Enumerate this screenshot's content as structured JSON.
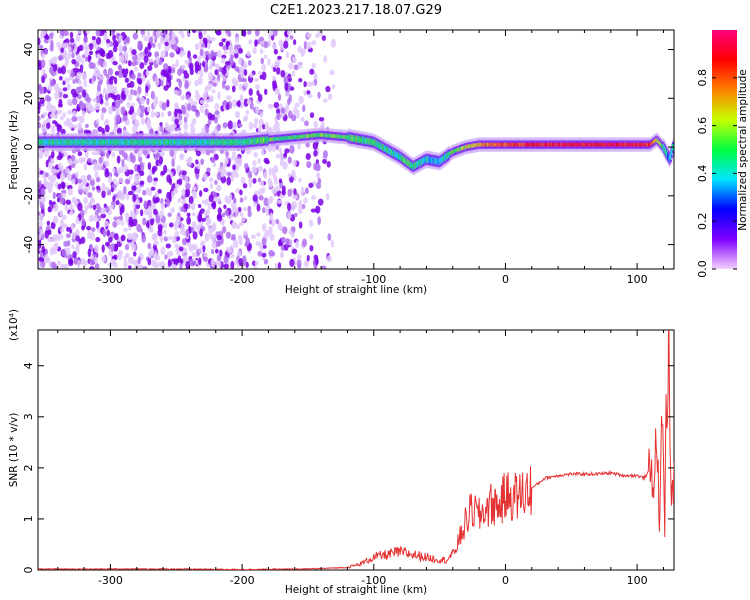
{
  "title": "C2E1.2023.217.18.07.G29",
  "colors": {
    "snr_line": "#e53333",
    "spectrum_noise": "#7a00e6",
    "colorbar_stops": [
      "#f5d0ff",
      "#8000ff",
      "#0000ff",
      "#00e5ff",
      "#00ff40",
      "#c8ff00",
      "#ff8000",
      "#ff0000",
      "#ff0080"
    ]
  },
  "chart_data": [
    {
      "type": "heatmap",
      "xlabel": "Height of straight line (km)",
      "ylabel": "Frequency (Hz)",
      "xlim": [
        -355,
        128
      ],
      "ylim": [
        -50,
        48
      ],
      "xticks": [
        -300,
        -200,
        -100,
        0,
        100
      ],
      "yticks": [
        -40,
        -20,
        0,
        20,
        40
      ],
      "xtick_labels": [
        "-300",
        "-200",
        "-100",
        "0",
        "100"
      ],
      "ytick_labels": [
        "-40",
        "-20",
        "0",
        "20",
        "40"
      ],
      "colorbar": {
        "label": "Normalized spectral amplitude",
        "range": [
          0,
          1
        ],
        "ticks": [
          0.0,
          0.2,
          0.4,
          0.6,
          0.8
        ],
        "tick_labels": [
          "0.0",
          "0.2",
          "0.4",
          "0.6",
          "0.8"
        ]
      },
      "ridge": {
        "x": [
          -355,
          -300,
          -250,
          -200,
          -180,
          -160,
          -140,
          -120,
          -100,
          -90,
          -80,
          -70,
          -60,
          -50,
          -40,
          -30,
          -20,
          0,
          20,
          50,
          80,
          100,
          110,
          115,
          120,
          125,
          128
        ],
        "y": [
          2,
          2,
          2,
          2,
          3,
          4,
          5,
          4,
          2,
          -1,
          -4,
          -8,
          -5,
          -6,
          -2,
          0,
          1,
          1,
          1,
          1,
          1,
          1,
          1,
          3,
          0,
          -5,
          1
        ],
        "amplitude": [
          0.45,
          0.45,
          0.45,
          0.48,
          0.5,
          0.5,
          0.55,
          0.5,
          0.48,
          0.45,
          0.45,
          0.5,
          0.4,
          0.35,
          0.55,
          0.62,
          0.7,
          0.8,
          0.85,
          0.88,
          0.9,
          0.88,
          0.85,
          0.6,
          0.5,
          0.3,
          0.55
        ]
      }
    },
    {
      "type": "line",
      "xlabel": "Height of straight line (km)",
      "ylabel": "SNR (10 * v/v)",
      "scale_label": "(x10⁴)",
      "xlim": [
        -355,
        128
      ],
      "ylim": [
        0,
        4.7
      ],
      "xticks": [
        -300,
        -200,
        -100,
        0,
        100
      ],
      "yticks": [
        0,
        1,
        2,
        3,
        4
      ],
      "xtick_labels": [
        "-300",
        "-200",
        "-100",
        "0",
        "100"
      ],
      "ytick_labels": [
        "0",
        "1",
        "2",
        "3",
        "4"
      ],
      "series": [
        {
          "x": [
            -355,
            -300,
            -250,
            -200,
            -150,
            -120,
            -110,
            -100,
            -90,
            -80,
            -70,
            -60,
            -50,
            -45,
            -40,
            -35,
            -30,
            -25,
            -20,
            -15,
            -10,
            -5,
            0,
            10,
            20,
            30,
            40,
            50,
            60,
            70,
            80,
            90,
            100,
            105,
            110,
            113,
            115,
            117,
            119,
            121,
            122,
            124,
            126,
            128
          ],
          "y": [
            0.02,
            0.02,
            0.02,
            0.01,
            0.02,
            0.05,
            0.12,
            0.25,
            0.3,
            0.35,
            0.3,
            0.25,
            0.2,
            0.2,
            0.3,
            0.6,
            0.95,
            1.2,
            1.05,
            1.2,
            1.3,
            1.25,
            1.45,
            1.45,
            1.6,
            1.8,
            1.85,
            1.88,
            1.88,
            1.88,
            1.9,
            1.85,
            1.85,
            1.8,
            1.95,
            1.7,
            2.9,
            0.6,
            3.5,
            0.8,
            2.8,
            4.7,
            1.2,
            1.8
          ]
        }
      ]
    }
  ]
}
